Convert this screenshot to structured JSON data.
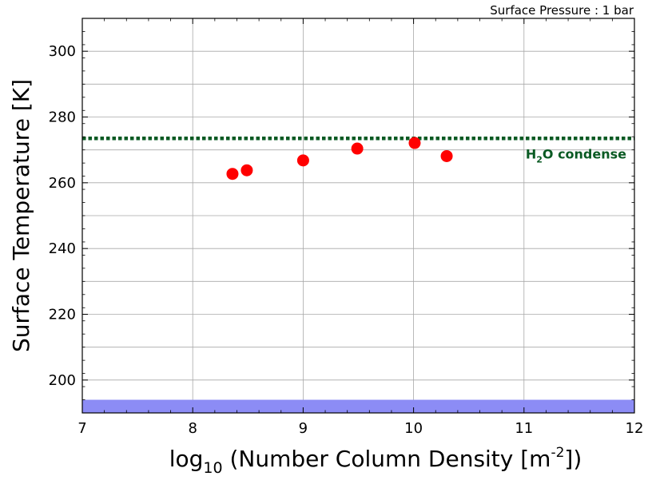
{
  "chart_data": {
    "type": "scatter",
    "subtitle": "Surface Pressure : 1 bar",
    "xlabel": {
      "prefix": "log",
      "sub": "10",
      "text": " (Number Column Density [m",
      "sup": "-2",
      "suffix": "])"
    },
    "ylabel": "Surface Temperature [K]",
    "xlim": [
      7,
      12
    ],
    "ylim": [
      190,
      310
    ],
    "xticks": [
      7,
      8,
      9,
      10,
      11,
      12
    ],
    "yticks": [
      200,
      220,
      240,
      260,
      280,
      300
    ],
    "grid": true,
    "points": [
      {
        "x": 8.36,
        "y": 262.7
      },
      {
        "x": 8.49,
        "y": 263.8
      },
      {
        "x": 9.0,
        "y": 266.8
      },
      {
        "x": 9.49,
        "y": 270.4
      },
      {
        "x": 10.01,
        "y": 272.1
      },
      {
        "x": 10.3,
        "y": 268.1
      }
    ],
    "point_color": "#ff0000",
    "reference_line": {
      "y": 273.5,
      "label_main": "H",
      "label_sub": "2",
      "label_rest": "O condense",
      "color": "#0a5a23",
      "style": "dotted"
    },
    "band": {
      "y_from": 190,
      "y_to": 194,
      "color": "#8c8cf5"
    }
  }
}
